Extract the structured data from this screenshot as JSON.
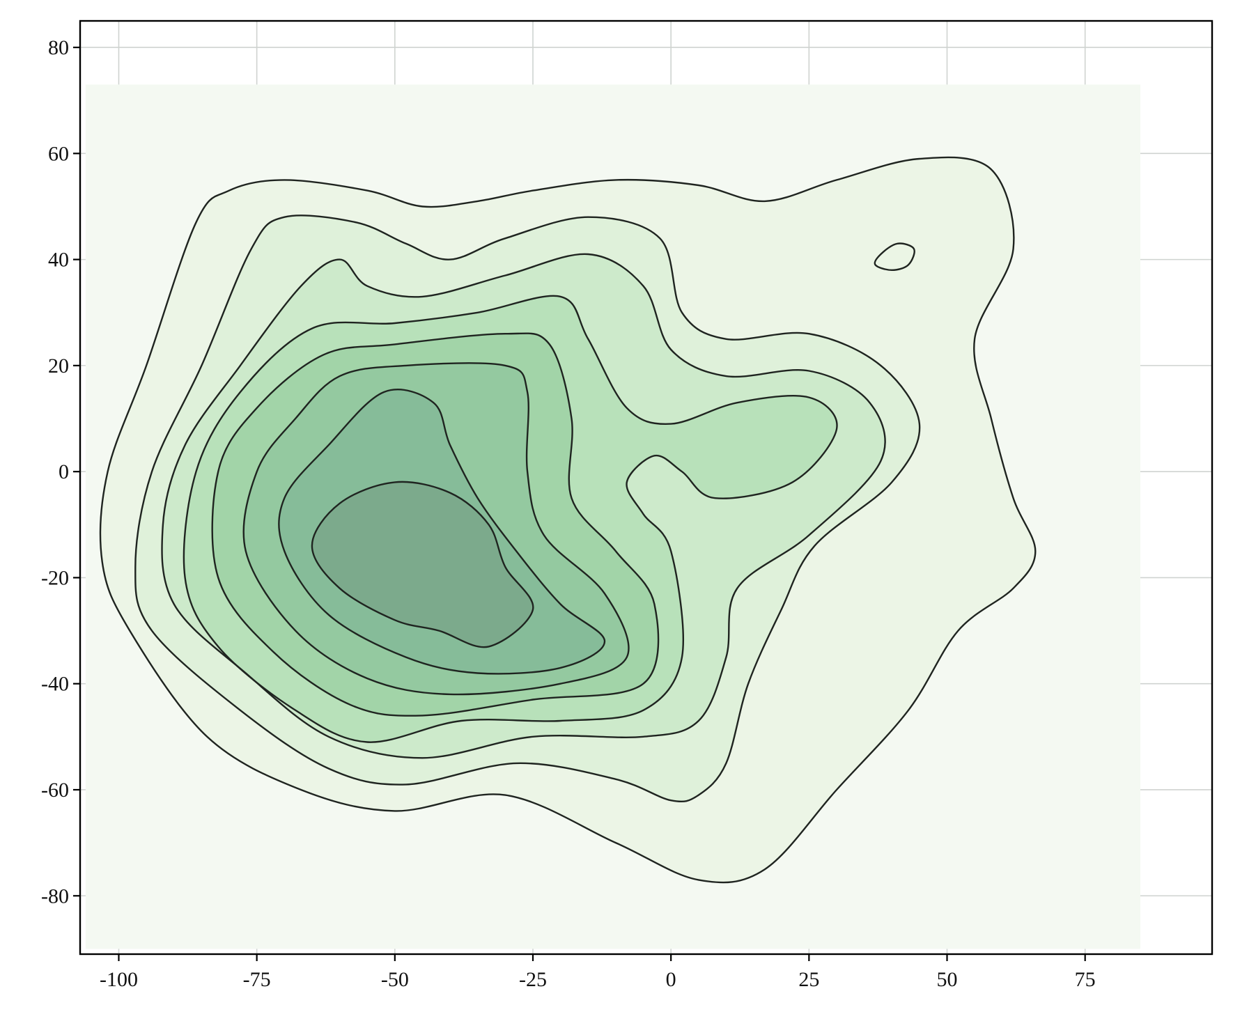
{
  "chart_data": {
    "type": "contour",
    "title": "",
    "xlabel": "",
    "ylabel": "",
    "xlim": [
      -107,
      98
    ],
    "ylim": [
      -91,
      85
    ],
    "grid": true,
    "xticks": [
      -100,
      -75,
      -50,
      -25,
      0,
      25,
      50,
      75
    ],
    "yticks": [
      -80,
      -60,
      -40,
      -20,
      0,
      20,
      40,
      60,
      80
    ],
    "xtick_labels": [
      "-100",
      "-75",
      "-50",
      "-25",
      "0",
      "25",
      "50",
      "75"
    ],
    "ytick_labels": [
      "-80",
      "-60",
      "-40",
      "-20",
      "0",
      "20",
      "40",
      "60",
      "80"
    ],
    "density_region": {
      "x": [
        -106,
        85
      ],
      "y": [
        -90,
        73
      ]
    },
    "colors": {
      "background_fill": "#f4f9f2",
      "levels": [
        "#eaf4e5",
        "#ddf0d9",
        "#cbe9ca",
        "#b6e0b8",
        "#a0d3a6",
        "#93c8a0",
        "#84bb98",
        "#7ca88b"
      ],
      "line": "#1f2420"
    },
    "contours": [
      {
        "level": 1,
        "points": [
          [
            -86,
            47
          ],
          [
            -80,
            53
          ],
          [
            -70,
            55
          ],
          [
            -55,
            53
          ],
          [
            -45,
            50
          ],
          [
            -35,
            51
          ],
          [
            -25,
            53
          ],
          [
            -10,
            55
          ],
          [
            5,
            54
          ],
          [
            17,
            51
          ],
          [
            30,
            55
          ],
          [
            45,
            59
          ],
          [
            58,
            57
          ],
          [
            62,
            42
          ],
          [
            55,
            25
          ],
          [
            58,
            10
          ],
          [
            62,
            -5
          ],
          [
            66,
            -15
          ],
          [
            62,
            -22
          ],
          [
            52,
            -30
          ],
          [
            43,
            -45
          ],
          [
            30,
            -60
          ],
          [
            17,
            -75
          ],
          [
            5,
            -77
          ],
          [
            -10,
            -70
          ],
          [
            -30,
            -61
          ],
          [
            -50,
            -64
          ],
          [
            -67,
            -60
          ],
          [
            -84,
            -50
          ],
          [
            -98,
            -30
          ],
          [
            -103,
            -17
          ],
          [
            -102,
            0
          ],
          [
            -95,
            20
          ]
        ]
      },
      {
        "level": 1,
        "points": [
          [
            38,
            41
          ],
          [
            41,
            43
          ],
          [
            44,
            42
          ],
          [
            43,
            39
          ],
          [
            40,
            38
          ],
          [
            37,
            39
          ]
        ]
      },
      {
        "level": 2,
        "points": [
          [
            -76,
            42
          ],
          [
            -70,
            48
          ],
          [
            -57,
            47
          ],
          [
            -48,
            43
          ],
          [
            -40,
            40
          ],
          [
            -30,
            44
          ],
          [
            -15,
            48
          ],
          [
            -2,
            44
          ],
          [
            2,
            30
          ],
          [
            10,
            25
          ],
          [
            25,
            26
          ],
          [
            38,
            20
          ],
          [
            45,
            9
          ],
          [
            40,
            -2
          ],
          [
            26,
            -14
          ],
          [
            20,
            -26
          ],
          [
            14,
            -40
          ],
          [
            10,
            -55
          ],
          [
            5,
            -61
          ],
          [
            0,
            -62
          ],
          [
            -10,
            -58
          ],
          [
            -28,
            -55
          ],
          [
            -48,
            -59
          ],
          [
            -62,
            -56
          ],
          [
            -78,
            -45
          ],
          [
            -94,
            -30
          ],
          [
            -97,
            -18
          ],
          [
            -94,
            0
          ],
          [
            -85,
            20
          ]
        ]
      },
      {
        "level": 3,
        "points": [
          [
            -67,
            35
          ],
          [
            -60,
            40
          ],
          [
            -55,
            35
          ],
          [
            -45,
            33
          ],
          [
            -30,
            37
          ],
          [
            -15,
            41
          ],
          [
            -5,
            35
          ],
          [
            0,
            23
          ],
          [
            10,
            18
          ],
          [
            25,
            19
          ],
          [
            36,
            13
          ],
          [
            38,
            2
          ],
          [
            25,
            -12
          ],
          [
            12,
            -22
          ],
          [
            10,
            -35
          ],
          [
            5,
            -47
          ],
          [
            -5,
            -50
          ],
          [
            -25,
            -50
          ],
          [
            -45,
            -54
          ],
          [
            -62,
            -50
          ],
          [
            -77,
            -38
          ],
          [
            -90,
            -25
          ],
          [
            -92,
            -10
          ],
          [
            -88,
            5
          ],
          [
            -78,
            20
          ]
        ]
      },
      {
        "level": 4,
        "points": [
          [
            -65,
            27
          ],
          [
            -50,
            28
          ],
          [
            -35,
            30
          ],
          [
            -20,
            33
          ],
          [
            -15,
            25
          ],
          [
            -8,
            12
          ],
          [
            0,
            9
          ],
          [
            12,
            13
          ],
          [
            25,
            14
          ],
          [
            30,
            8
          ],
          [
            22,
            -2
          ],
          [
            8,
            -5
          ],
          [
            2,
            0
          ],
          [
            -3,
            3
          ],
          [
            -8,
            -2
          ],
          [
            -5,
            -8
          ],
          [
            0,
            -15
          ],
          [
            2,
            -35
          ],
          [
            -5,
            -45
          ],
          [
            -20,
            -47
          ],
          [
            -38,
            -47
          ],
          [
            -55,
            -51
          ],
          [
            -68,
            -45
          ],
          [
            -82,
            -33
          ],
          [
            -88,
            -20
          ],
          [
            -86,
            0
          ],
          [
            -78,
            15
          ]
        ]
      },
      {
        "level": 5,
        "points": [
          [
            -63,
            22
          ],
          [
            -50,
            24
          ],
          [
            -30,
            26
          ],
          [
            -22,
            24
          ],
          [
            -18,
            10
          ],
          [
            -18,
            -5
          ],
          [
            -10,
            -15
          ],
          [
            -3,
            -25
          ],
          [
            -5,
            -40
          ],
          [
            -25,
            -43
          ],
          [
            -45,
            -46
          ],
          [
            -58,
            -44
          ],
          [
            -72,
            -34
          ],
          [
            -82,
            -20
          ],
          [
            -82,
            0
          ],
          [
            -75,
            12
          ]
        ]
      },
      {
        "level": 6,
        "points": [
          [
            -60,
            18
          ],
          [
            -48,
            20
          ],
          [
            -30,
            20
          ],
          [
            -26,
            15
          ],
          [
            -26,
            0
          ],
          [
            -23,
            -12
          ],
          [
            -12,
            -23
          ],
          [
            -8,
            -35
          ],
          [
            -20,
            -40
          ],
          [
            -40,
            -42
          ],
          [
            -55,
            -39
          ],
          [
            -68,
            -30
          ],
          [
            -77,
            -15
          ],
          [
            -75,
            0
          ],
          [
            -68,
            10
          ]
        ]
      },
      {
        "level": 7,
        "points": [
          [
            -52,
            15
          ],
          [
            -43,
            13
          ],
          [
            -40,
            5
          ],
          [
            -35,
            -5
          ],
          [
            -28,
            -15
          ],
          [
            -20,
            -25
          ],
          [
            -12,
            -32
          ],
          [
            -20,
            -37
          ],
          [
            -35,
            -38
          ],
          [
            -48,
            -35
          ],
          [
            -62,
            -27
          ],
          [
            -70,
            -15
          ],
          [
            -70,
            -5
          ],
          [
            -62,
            5
          ]
        ]
      },
      {
        "level": 8,
        "points": [
          [
            -50,
            -2
          ],
          [
            -40,
            -4
          ],
          [
            -33,
            -10
          ],
          [
            -30,
            -18
          ],
          [
            -25,
            -26
          ],
          [
            -33,
            -33
          ],
          [
            -42,
            -30
          ],
          [
            -50,
            -28
          ],
          [
            -60,
            -22
          ],
          [
            -65,
            -14
          ],
          [
            -60,
            -6
          ]
        ]
      }
    ]
  }
}
